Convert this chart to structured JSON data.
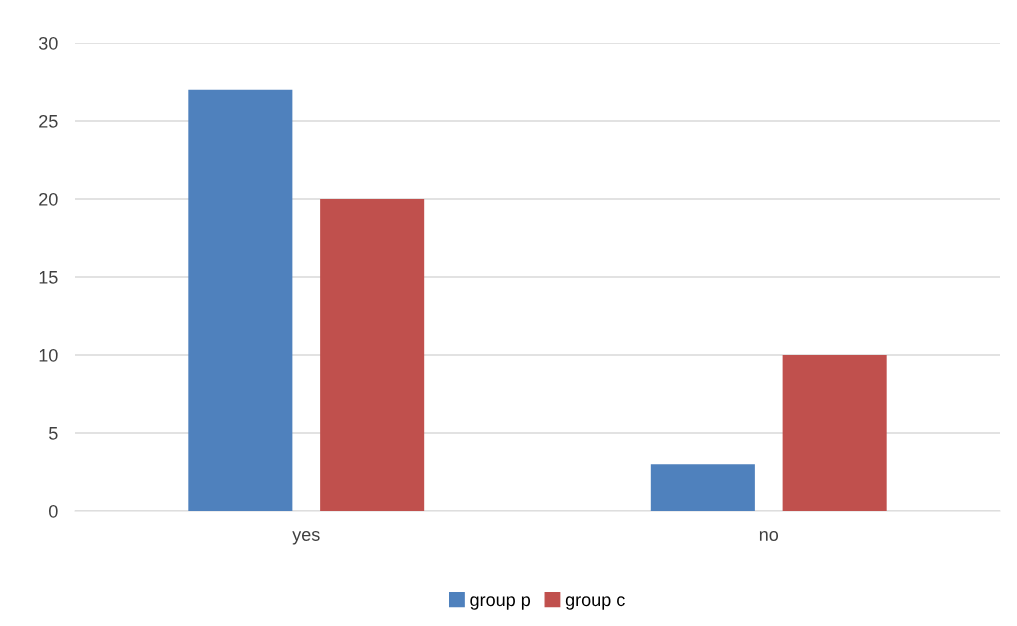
{
  "chart_data": {
    "type": "bar",
    "categories": [
      "yes",
      "no"
    ],
    "series": [
      {
        "name": "group p",
        "color": "#4f81bd",
        "values": [
          27,
          3
        ]
      },
      {
        "name": "group c",
        "color": "#c0504d",
        "values": [
          20,
          10
        ]
      }
    ],
    "ylim": [
      0,
      30
    ],
    "yticks": [
      0,
      5,
      10,
      15,
      20,
      25,
      30
    ],
    "grid": "y",
    "legend": "bottom"
  }
}
